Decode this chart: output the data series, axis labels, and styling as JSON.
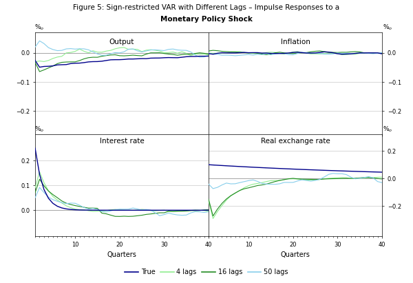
{
  "title_line1": "Figure 5: Sign-restricted VAR with Different Lags – Impulse Responses to a",
  "title_line2": "Monetary Policy Shock",
  "panel_labels": [
    "Output",
    "Inflation",
    "Interest rate",
    "Real exchange rate"
  ],
  "xlabel": "Quarters",
  "n_periods": 40,
  "colors": {
    "true": "#00008B",
    "lag4": "#90EE90",
    "lag16": "#228B22",
    "lag50": "#87CEEB"
  },
  "legend_labels": [
    "True",
    "4 lags",
    "16 lags",
    "50 lags"
  ],
  "output_ylim": [
    -0.28,
    0.07
  ],
  "output_yticks": [
    0.0,
    -0.1,
    -0.2
  ],
  "inflation_ylim": [
    -0.28,
    0.07
  ],
  "inflation_yticks": [
    0.0,
    -0.1,
    -0.2
  ],
  "interest_ylim": [
    -0.105,
    0.305
  ],
  "interest_yticks": [
    0.2,
    0.1,
    0.0
  ],
  "rex_ylim": [
    -0.42,
    0.32
  ],
  "rex_yticks": [
    0.2,
    0.0,
    -0.2
  ],
  "xticks": [
    10,
    20,
    30,
    40
  ],
  "grid_color": "#bbbbbb",
  "lw_true": 1.0,
  "lw_lag": 0.8
}
